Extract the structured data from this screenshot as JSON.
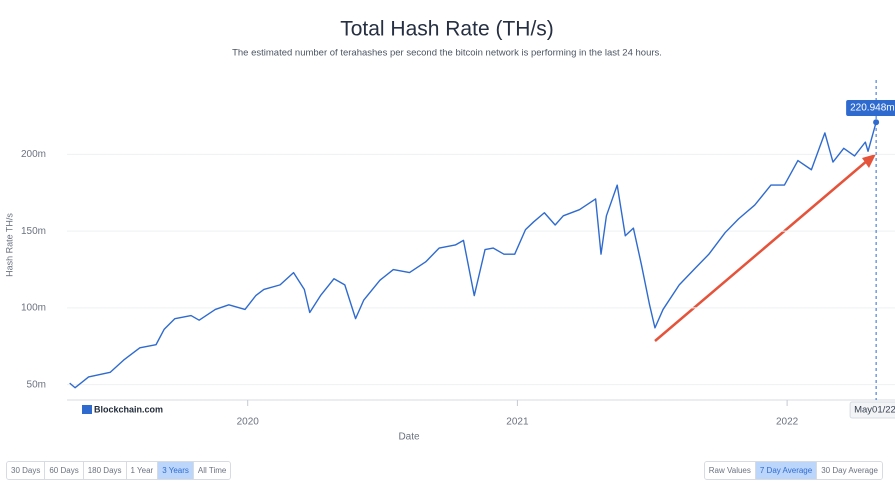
{
  "chart_data": {
    "type": "line",
    "title": "Total Hash Rate (TH/s)",
    "subtitle": "The estimated number of terahashes per second the bitcoin network is performing in the last 24 hours.",
    "y_label": "Hash Rate TH/s",
    "x_label": "Date",
    "logo": "Blockchain.com",
    "x": [
      2019.34,
      2019.36,
      2019.41,
      2019.49,
      2019.54,
      2019.6,
      2019.66,
      2019.69,
      2019.73,
      2019.79,
      2019.82,
      2019.88,
      2019.93,
      2019.99,
      2020.03,
      2020.06,
      2020.12,
      2020.17,
      2020.21,
      2020.23,
      2020.27,
      2020.32,
      2020.36,
      2020.4,
      2020.43,
      2020.49,
      2020.54,
      2020.6,
      2020.66,
      2020.71,
      2020.77,
      2020.8,
      2020.84,
      2020.88,
      2020.91,
      2020.95,
      2020.99,
      2021.03,
      2021.06,
      2021.1,
      2021.14,
      2021.17,
      2021.23,
      2021.29,
      2021.31,
      2021.33,
      2021.37,
      2021.4,
      2021.43,
      2021.46,
      2021.49,
      2021.51,
      2021.54,
      2021.6,
      2021.66,
      2021.71,
      2021.77,
      2021.82,
      2021.88,
      2021.94,
      2021.99,
      2022.04,
      2022.09,
      2022.14,
      2022.17,
      2022.21,
      2022.25,
      2022.29,
      2022.3,
      2022.33
    ],
    "series": [
      {
        "name": "Hash Rate",
        "color": "#2f6bcf",
        "values": [
          51,
          48,
          55,
          58,
          66,
          74,
          76,
          86,
          93,
          95,
          92,
          99,
          102,
          99,
          108,
          112,
          115,
          123,
          112,
          97,
          108,
          119,
          115,
          93,
          105,
          118,
          125,
          123,
          130,
          139,
          141,
          144,
          108,
          138,
          139,
          135,
          135,
          151,
          156,
          162,
          154,
          160,
          164,
          171,
          135,
          160,
          180,
          147,
          152,
          128,
          102,
          87,
          99,
          115,
          126,
          135,
          149,
          158,
          167,
          180,
          180,
          196,
          190,
          214,
          195,
          204,
          199,
          208,
          202,
          220.948
        ]
      }
    ],
    "xlim": [
      2019.33,
      2022.4
    ],
    "xticks": [
      2020,
      2021,
      2022
    ],
    "ylim": [
      40,
      240
    ],
    "yticks": [
      {
        "value": 50,
        "label": "50m"
      },
      {
        "value": 100,
        "label": "100m"
      },
      {
        "value": 150,
        "label": "150m"
      },
      {
        "value": 200,
        "label": "200m"
      }
    ],
    "grid": true,
    "hover": {
      "x_label": "May01/22",
      "value_label": "220.948m"
    },
    "range_buttons": [
      "30 Days",
      "60 Days",
      "180 Days",
      "1 Year",
      "3 Years",
      "All Time"
    ],
    "selected_range": 4,
    "average_buttons": [
      "Raw Values",
      "7 Day Average",
      "30 Day Average"
    ],
    "selected_average": 1
  }
}
